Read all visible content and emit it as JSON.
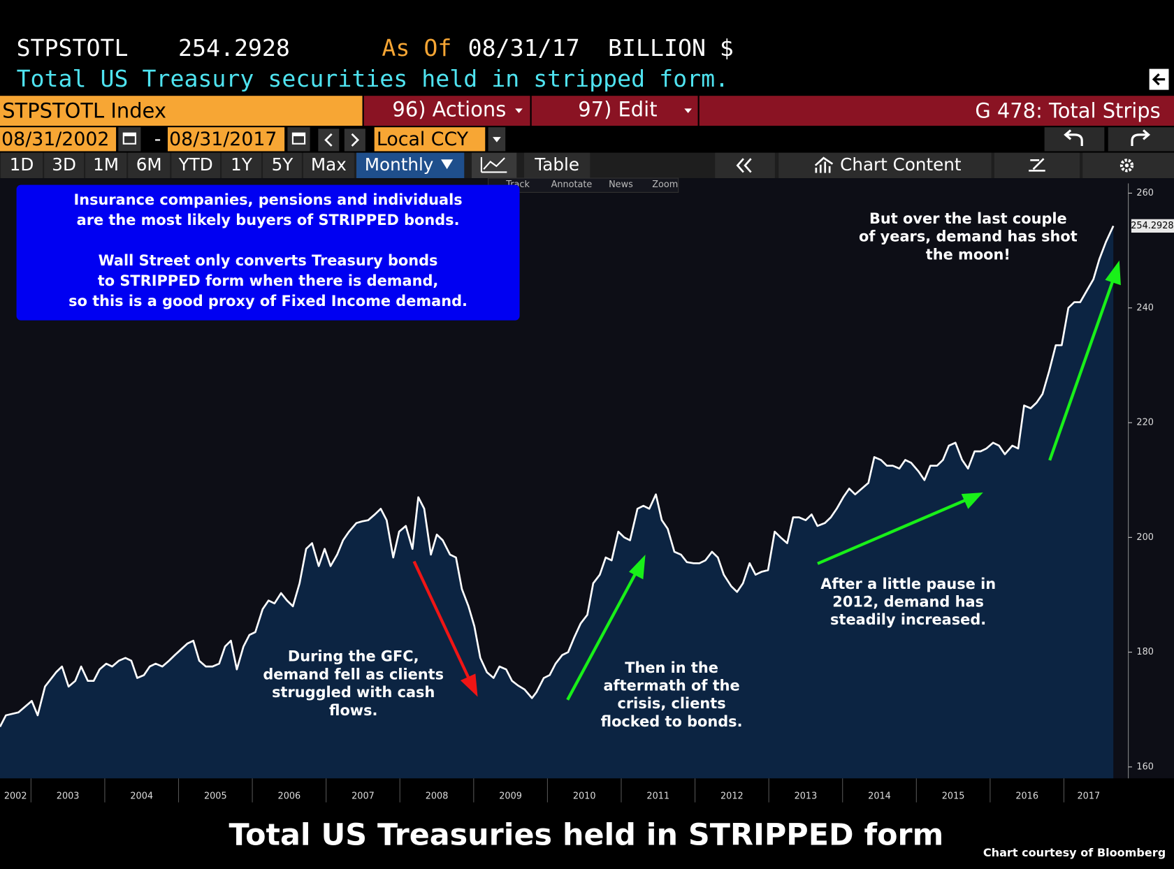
{
  "header": {
    "ticker": "STPSTOTL",
    "as_of_label": "As Of",
    "as_of_date": "08/31/17",
    "units": "BILLION $",
    "description": "Total US Treasury securities held in stripped form."
  },
  "toolbar": {
    "security": "STPSTOTL Index",
    "actions": "96) Actions",
    "edit": "97) Edit",
    "chart_name": "G 478: Total Strips",
    "start_date": "08/31/2002",
    "date_separator": "-",
    "end_date": "08/31/2017",
    "currency": "Local CCY",
    "ranges": [
      "1D",
      "3D",
      "1M",
      "6M",
      "YTD",
      "1Y",
      "5Y",
      "Max"
    ],
    "frequency": "Monthly",
    "table": "Table",
    "chart_content": "Chart Content",
    "tools": [
      "Track",
      "Annotate",
      "News",
      "Zoom"
    ]
  },
  "chart_data": {
    "type": "line",
    "title": "Total US Treasuries held in STRIPPED form",
    "credit": "Chart courtesy of Bloomberg",
    "color": "#ffffff",
    "fill": "#0c2442",
    "x": [
      2002.58,
      2002.66,
      2002.83,
      2003.01,
      2003.09,
      2003.19,
      2003.34,
      2003.42,
      2003.51,
      2003.6,
      2003.68,
      2003.77,
      2003.85,
      2003.93,
      2004.02,
      2004.1,
      2004.19,
      2004.28,
      2004.36,
      2004.44,
      2004.53,
      2004.61,
      2004.69,
      2004.78,
      2004.87,
      2004.95,
      2005.12,
      2005.2,
      2005.28,
      2005.37,
      2005.46,
      2005.55,
      2005.63,
      2005.71,
      2005.79,
      2005.88,
      2005.96,
      2006.04,
      2006.14,
      2006.22,
      2006.3,
      2006.39,
      2006.47,
      2006.55,
      2006.64,
      2006.73,
      2006.81,
      2006.9,
      2006.98,
      2007.06,
      2007.15,
      2007.23,
      2007.31,
      2007.41,
      2007.49,
      2007.57,
      2007.66,
      2007.74,
      2007.82,
      2007.91,
      2007.99,
      2008.08,
      2008.17,
      2008.25,
      2008.33,
      2008.42,
      2008.5,
      2008.58,
      2008.68,
      2008.76,
      2008.84,
      2008.93,
      2009.01,
      2009.09,
      2009.18,
      2009.27,
      2009.35,
      2009.44,
      2009.52,
      2009.6,
      2009.69,
      2009.79,
      2009.85,
      2009.95,
      2010.03,
      2010.11,
      2010.2,
      2010.28,
      2010.36,
      2010.45,
      2010.54,
      2010.62,
      2010.71,
      2010.79,
      2010.87,
      2010.96,
      2011.04,
      2011.12,
      2011.22,
      2011.3,
      2011.38,
      2011.47,
      2011.55,
      2011.63,
      2011.72,
      2011.81,
      2011.89,
      2011.98,
      2012.06,
      2012.14,
      2012.23,
      2012.31,
      2012.39,
      2012.49,
      2012.57,
      2012.65,
      2012.74,
      2012.82,
      2012.9,
      2012.99,
      2013.08,
      2013.16,
      2013.25,
      2013.33,
      2013.41,
      2013.5,
      2013.58,
      2013.66,
      2013.76,
      2013.84,
      2013.92,
      2014.01,
      2014.09,
      2014.17,
      2014.26,
      2014.35,
      2014.43,
      2014.52,
      2014.6,
      2014.68,
      2014.77,
      2014.85,
      2014.93,
      2015.03,
      2015.11,
      2015.19,
      2015.28,
      2015.36,
      2015.44,
      2015.53,
      2015.62,
      2015.7,
      2015.79,
      2015.87,
      2015.95,
      2016.04,
      2016.12,
      2016.2,
      2016.3,
      2016.38,
      2016.46,
      2016.55,
      2016.63,
      2016.71,
      2016.8,
      2016.89,
      2016.97,
      2017.06,
      2017.14,
      2017.22,
      2017.31,
      2017.4,
      2017.48,
      2017.57,
      2017.67
    ],
    "values": [
      167,
      169,
      169.5,
      171.5,
      169,
      174,
      176.5,
      177.5,
      174,
      175,
      177.5,
      175,
      175,
      177,
      178,
      177.5,
      178.5,
      179,
      178.5,
      175.5,
      176,
      177.5,
      178,
      177.5,
      178.5,
      179.5,
      181.5,
      182,
      178.5,
      177.5,
      177.5,
      178,
      181,
      182,
      177,
      181,
      183,
      183.5,
      187.5,
      189,
      188.5,
      190.3,
      189,
      188,
      192,
      198,
      199,
      195,
      198,
      195,
      197,
      199.5,
      201,
      202.5,
      202.8,
      203,
      204,
      205,
      203,
      196.5,
      201,
      202,
      198,
      207,
      205,
      197,
      200.5,
      199.5,
      197,
      196.5,
      191,
      188,
      184.5,
      179,
      176.5,
      175.5,
      177.5,
      177,
      175,
      174.2,
      173.5,
      172,
      173,
      175.5,
      176,
      178,
      179.5,
      180,
      182.5,
      185,
      186.5,
      192,
      193.5,
      196.5,
      196,
      201,
      200,
      199.5,
      205,
      205.5,
      205,
      207.5,
      203,
      201.5,
      197.5,
      197,
      195.7,
      195.5,
      195.5,
      196,
      197.5,
      196.5,
      193.5,
      191.5,
      190.5,
      192,
      195.5,
      193.5,
      194,
      194.3,
      201,
      200,
      199,
      203.5,
      203.5,
      203,
      204,
      202,
      202.5,
      203.5,
      205,
      207,
      208.5,
      207.5,
      208.5,
      209.5,
      214,
      213.5,
      212.5,
      212.5,
      212,
      213.5,
      213,
      211.5,
      210,
      212.5,
      212.5,
      213.5,
      216,
      216.5,
      213.5,
      212,
      215,
      215,
      215.5,
      216.5,
      216,
      214.5,
      216,
      215.5,
      223,
      222.5,
      223.5,
      225,
      229,
      233.5,
      233.5,
      240,
      241,
      241,
      243,
      245,
      248.5,
      251.5,
      254.2928
    ],
    "xlim": [
      2002.58,
      2017.67
    ],
    "ylim": [
      158,
      261.7
    ],
    "xticks": [
      2002,
      2003,
      2004,
      2005,
      2006,
      2007,
      2008,
      2009,
      2010,
      2011,
      2012,
      2013,
      2014,
      2015,
      2016,
      2017
    ],
    "yticks": [
      160,
      180,
      200,
      220,
      240,
      260
    ],
    "annotations": [
      {
        "lines": [
          "Insurance companies, pensions and individuals",
          "are the most likely buyers of STRIPPED bonds."
        ]
      },
      {
        "lines": [
          "Wall Street only converts Treasury bonds",
          "to STRIPPED form when there is demand,",
          "so this is a good proxy of Fixed Income demand."
        ]
      },
      {
        "lines": [
          "During the GFC,",
          "demand fell as clients",
          "struggled with cash",
          "flows."
        ]
      },
      {
        "lines": [
          "Then in the",
          "aftermath of the",
          "crisis, clients",
          "flocked to bonds."
        ]
      },
      {
        "lines": [
          "After a little pause in",
          "2012, demand has",
          "steadily increased."
        ]
      },
      {
        "lines": [
          "But over the last couple",
          "of years, demand has shot",
          "the moon!"
        ]
      }
    ]
  }
}
